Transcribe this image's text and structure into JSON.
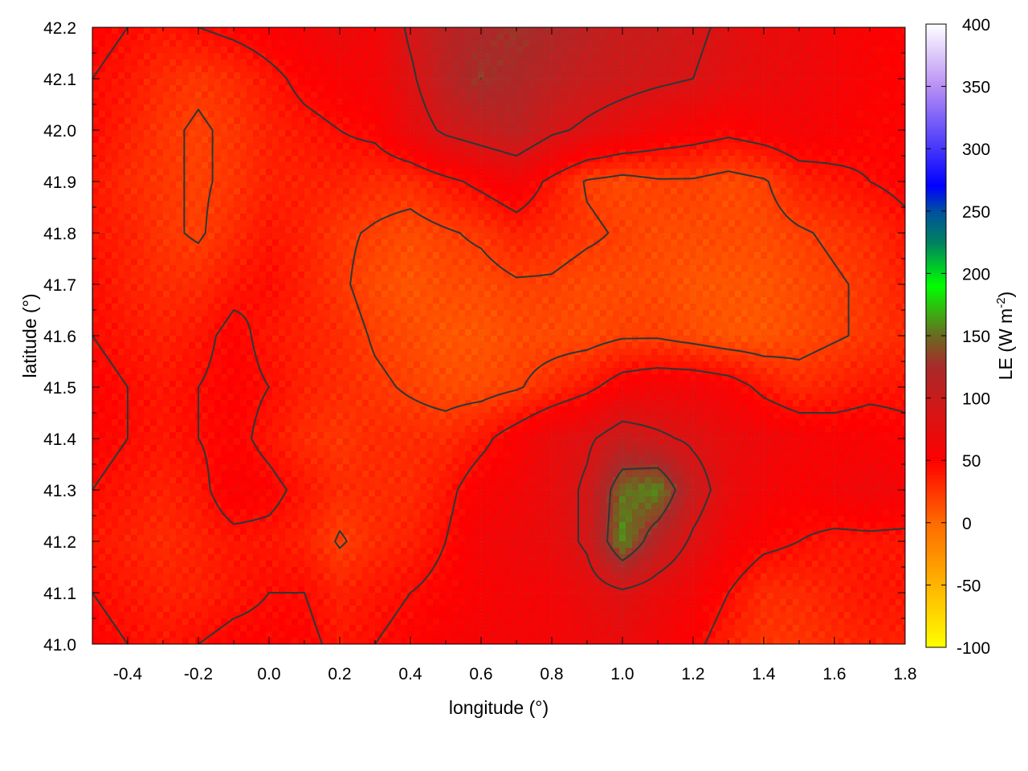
{
  "chart_data": {
    "type": "heatmap",
    "title": "",
    "xlabel": "longitude (°)",
    "ylabel": "latitude (°)",
    "xlim": [
      -0.5,
      1.8
    ],
    "ylim": [
      41.0,
      42.2
    ],
    "xticks": [
      "-0.4",
      "-0.2",
      "0.0",
      "0.2",
      "0.4",
      "0.6",
      "0.8",
      "1.0",
      "1.2",
      "1.4",
      "1.6",
      "1.8"
    ],
    "yticks": [
      "41.0",
      "41.1",
      "41.2",
      "41.3",
      "41.4",
      "41.5",
      "41.6",
      "41.7",
      "41.8",
      "41.9",
      "42.0",
      "42.1",
      "42.2"
    ],
    "grid": true,
    "contours": true,
    "colorbar": {
      "label": "LE (W m",
      "label_sup": "-2",
      "label_end": ")",
      "range": [
        -100,
        400
      ],
      "ticks": [
        "-100",
        "-50",
        "0",
        "50",
        "100",
        "150",
        "200",
        "250",
        "300",
        "350",
        "400"
      ],
      "colormap": [
        {
          "value": -100,
          "color": "#ffff00"
        },
        {
          "value": -50,
          "color": "#ffb400"
        },
        {
          "value": 0,
          "color": "#ff6a00"
        },
        {
          "value": 50,
          "color": "#ff0000"
        },
        {
          "value": 100,
          "color": "#c81c1c"
        },
        {
          "value": 125,
          "color": "#a82a2a"
        },
        {
          "value": 150,
          "color": "#6a6a20"
        },
        {
          "value": 190,
          "color": "#00ff00"
        },
        {
          "value": 225,
          "color": "#008060"
        },
        {
          "value": 250,
          "color": "#0050a0"
        },
        {
          "value": 270,
          "color": "#0000ff"
        },
        {
          "value": 350,
          "color": "#b890f4"
        },
        {
          "value": 400,
          "color": "#ffffff"
        }
      ]
    },
    "grid_lon": [
      -0.5,
      -0.4,
      -0.3,
      -0.2,
      -0.1,
      0.0,
      0.1,
      0.2,
      0.3,
      0.4,
      0.5,
      0.6,
      0.7,
      0.8,
      0.9,
      1.0,
      1.1,
      1.2,
      1.3,
      1.4,
      1.5,
      1.6,
      1.7,
      1.8
    ],
    "grid_lat": [
      42.2,
      42.1,
      42.0,
      41.9,
      41.8,
      41.7,
      41.6,
      41.5,
      41.4,
      41.3,
      41.2,
      41.1,
      41.0
    ],
    "values": [
      [
        50,
        45,
        40,
        45,
        50,
        55,
        60,
        70,
        60,
        90,
        110,
        120,
        130,
        120,
        110,
        100,
        100,
        90,
        80,
        70,
        70,
        60,
        55,
        50
      ],
      [
        45,
        40,
        30,
        25,
        30,
        40,
        50,
        55,
        60,
        80,
        110,
        130,
        120,
        110,
        100,
        95,
        90,
        85,
        75,
        70,
        65,
        60,
        55,
        50
      ],
      [
        45,
        35,
        25,
        20,
        25,
        35,
        40,
        45,
        50,
        70,
        90,
        100,
        110,
        90,
        80,
        70,
        60,
        55,
        50,
        55,
        60,
        55,
        50,
        50
      ],
      [
        40,
        30,
        25,
        20,
        25,
        35,
        35,
        35,
        30,
        30,
        40,
        50,
        60,
        40,
        20,
        15,
        20,
        20,
        15,
        20,
        35,
        40,
        45,
        50
      ],
      [
        40,
        35,
        25,
        20,
        30,
        40,
        35,
        25,
        20,
        15,
        20,
        25,
        35,
        30,
        25,
        20,
        15,
        15,
        15,
        15,
        20,
        25,
        30,
        40
      ],
      [
        45,
        35,
        30,
        30,
        40,
        45,
        35,
        25,
        15,
        10,
        15,
        15,
        20,
        20,
        15,
        15,
        15,
        10,
        10,
        10,
        15,
        20,
        25,
        35
      ],
      [
        45,
        40,
        35,
        40,
        50,
        40,
        35,
        30,
        20,
        15,
        10,
        10,
        15,
        15,
        15,
        20,
        20,
        15,
        10,
        10,
        15,
        20,
        25,
        30
      ],
      [
        50,
        45,
        40,
        45,
        50,
        45,
        35,
        30,
        25,
        20,
        15,
        15,
        20,
        30,
        40,
        55,
        60,
        60,
        55,
        40,
        30,
        35,
        40,
        40
      ],
      [
        50,
        45,
        40,
        45,
        50,
        40,
        30,
        25,
        30,
        30,
        30,
        40,
        55,
        70,
        80,
        100,
        90,
        80,
        70,
        65,
        60,
        55,
        55,
        50
      ],
      [
        45,
        40,
        35,
        40,
        55,
        50,
        40,
        30,
        30,
        30,
        40,
        55,
        60,
        70,
        90,
        150,
        160,
        100,
        70,
        60,
        55,
        60,
        65,
        60
      ],
      [
        40,
        35,
        30,
        35,
        40,
        40,
        35,
        20,
        30,
        35,
        45,
        60,
        65,
        70,
        90,
        160,
        110,
        80,
        60,
        50,
        45,
        40,
        40,
        40
      ],
      [
        45,
        40,
        35,
        35,
        40,
        45,
        45,
        35,
        40,
        45,
        50,
        55,
        60,
        60,
        70,
        80,
        70,
        60,
        45,
        30,
        30,
        35,
        40,
        40
      ],
      [
        50,
        45,
        40,
        45,
        50,
        50,
        50,
        40,
        45,
        50,
        55,
        60,
        60,
        60,
        65,
        70,
        60,
        50,
        35,
        25,
        25,
        30,
        35,
        35
      ]
    ]
  }
}
